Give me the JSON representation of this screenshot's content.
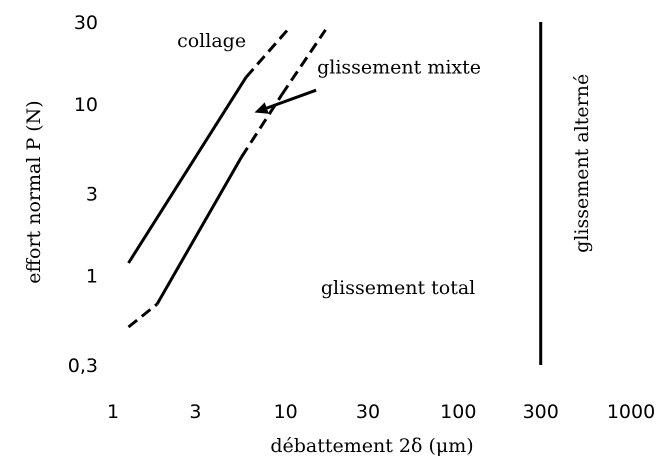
{
  "chart_data": {
    "type": "line",
    "title": "",
    "xlabel": "débattement 2δ (μm)",
    "ylabel": "effort normal P (N)",
    "x_scale": "log",
    "y_scale": "log",
    "xlim": [
      1,
      1000
    ],
    "ylim": [
      0.3,
      30
    ],
    "x_ticks": [
      {
        "value": 1,
        "label": "1"
      },
      {
        "value": 3,
        "label": "3"
      },
      {
        "value": 10,
        "label": "10"
      },
      {
        "value": 30,
        "label": "30"
      },
      {
        "value": 100,
        "label": "100"
      },
      {
        "value": 300,
        "label": "300"
      },
      {
        "value": 1000,
        "label": "1000"
      }
    ],
    "y_ticks": [
      {
        "value": 0.3,
        "label": "0,3"
      },
      {
        "value": 1,
        "label": "1"
      },
      {
        "value": 3,
        "label": "3"
      },
      {
        "value": 10,
        "label": "10"
      },
      {
        "value": 30,
        "label": "30"
      }
    ],
    "grid": false,
    "color": "#000000",
    "lines": [
      {
        "style": "solid",
        "x": [
          1.23,
          5.9
        ],
        "y": [
          1.18,
          14.3
        ]
      },
      {
        "style": "dashed",
        "x": [
          5.9,
          10.6
        ],
        "y": [
          14.3,
          28.0
        ]
      },
      {
        "style": "solid",
        "x": [
          1.8,
          5.55
        ],
        "y": [
          0.68,
          4.9
        ]
      },
      {
        "style": "dashed",
        "x": [
          5.55,
          9.5
        ],
        "y": [
          4.9,
          11.3
        ]
      },
      {
        "style": "dashed",
        "x": [
          1.23,
          1.8
        ],
        "y": [
          0.5,
          0.68
        ]
      },
      {
        "style": "dashed",
        "x": [
          9.5,
          17.0
        ],
        "y": [
          11.3,
          27.0
        ]
      },
      {
        "style": "solid",
        "x": [
          300,
          300
        ],
        "y": [
          0.3,
          30
        ]
      }
    ],
    "arrow": {
      "from": {
        "x": 15.0,
        "y": 12.0
      },
      "to": {
        "x": 6.6,
        "y": 8.9
      }
    },
    "annotations": [
      {
        "text": "collage",
        "x": 2.35,
        "y": 21.5,
        "rotate": 0
      },
      {
        "text": "glissement mixte",
        "x": 15.2,
        "y": 15.0,
        "rotate": 0
      },
      {
        "text": "glissement total",
        "x": 16.0,
        "y": 0.78,
        "rotate": 0
      },
      {
        "text": "glissement alterné",
        "x": 565,
        "y": 4.5,
        "rotate": -90
      }
    ]
  }
}
